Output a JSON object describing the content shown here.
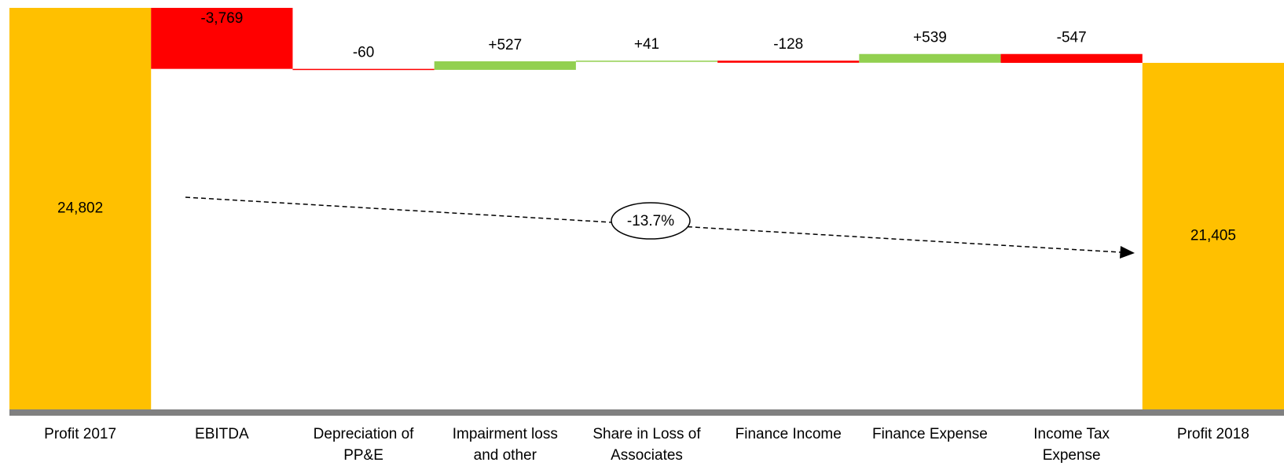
{
  "chart_data": {
    "type": "waterfall",
    "categories": [
      "Profit 2017",
      "EBITDA",
      "Depreciation of PP&E",
      "Impairment loss and other provisions",
      "Share in Loss of Associates",
      "Finance Income",
      "Finance Expense",
      "Income Tax Expense",
      "Profit 2018"
    ],
    "values": [
      24802,
      -3769,
      -60,
      527,
      41,
      -128,
      539,
      -547,
      21405
    ],
    "value_labels": [
      "24,802",
      "-3,769",
      "-60",
      "+527",
      "+41",
      "-128",
      "+539",
      "-547",
      "21,405"
    ],
    "colors": {
      "total": "#ffc000",
      "increase": "#92d050",
      "decrease": "#ff0000"
    },
    "annotation": "-13.7%"
  }
}
